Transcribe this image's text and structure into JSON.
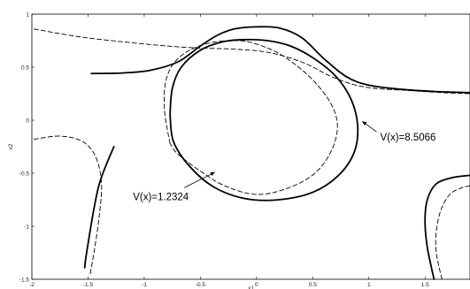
{
  "chart_data": {
    "type": "line",
    "title": "",
    "xlabel": "x1",
    "ylabel": "x2",
    "xlim": [
      -2,
      1.9
    ],
    "ylim": [
      -1.5,
      1
    ],
    "grid": false,
    "xticks": [
      {
        "value": -2,
        "label": "-2"
      },
      {
        "value": -1.5,
        "label": "-1.5"
      },
      {
        "value": -1,
        "label": "-1"
      },
      {
        "value": -0.5,
        "label": "-0.5"
      },
      {
        "value": 0,
        "label": "0"
      },
      {
        "value": 0.5,
        "label": "0.5"
      },
      {
        "value": 1,
        "label": "1"
      },
      {
        "value": 1.5,
        "label": "1.5"
      }
    ],
    "yticks": [
      {
        "value": 1,
        "label": "1"
      },
      {
        "value": 0.5,
        "label": "0.5"
      },
      {
        "value": 0,
        "label": "0"
      },
      {
        "value": -0.5,
        "label": "-0.5"
      },
      {
        "value": -1,
        "label": "-1"
      },
      {
        "value": -1.5,
        "label": "-1.5"
      }
    ],
    "series": [
      {
        "style": "solid",
        "points": [
          [
            -0.77,
            0.05
          ],
          [
            -0.75,
            0.3
          ],
          [
            -0.67,
            0.5
          ],
          [
            -0.5,
            0.66
          ],
          [
            -0.3,
            0.74
          ],
          [
            -0.1,
            0.76
          ],
          [
            0.1,
            0.75
          ],
          [
            0.3,
            0.7
          ],
          [
            0.5,
            0.59
          ],
          [
            0.7,
            0.42
          ],
          [
            0.84,
            0.2
          ],
          [
            0.9,
            -0.05
          ],
          [
            0.87,
            -0.3
          ],
          [
            0.73,
            -0.52
          ],
          [
            0.5,
            -0.68
          ],
          [
            0.2,
            -0.75
          ],
          [
            -0.1,
            -0.74
          ],
          [
            -0.38,
            -0.63
          ],
          [
            -0.6,
            -0.43
          ],
          [
            -0.74,
            -0.2
          ],
          [
            -0.77,
            0.05
          ]
        ]
      },
      {
        "style": "solid",
        "points": [
          [
            -1.47,
            0.44
          ],
          [
            -1.2,
            0.445
          ],
          [
            -0.95,
            0.47
          ],
          [
            -0.7,
            0.55
          ],
          [
            -0.5,
            0.7
          ],
          [
            -0.35,
            0.8
          ],
          [
            -0.2,
            0.86
          ],
          [
            0,
            0.88
          ],
          [
            0.2,
            0.87
          ],
          [
            0.4,
            0.78
          ],
          [
            0.6,
            0.58
          ],
          [
            0.8,
            0.41
          ],
          [
            1.0,
            0.33
          ],
          [
            1.3,
            0.29
          ],
          [
            1.6,
            0.27
          ],
          [
            1.9,
            0.26
          ]
        ]
      },
      {
        "style": "solid",
        "points": [
          [
            -1.27,
            -0.25
          ],
          [
            -1.33,
            -0.4
          ],
          [
            -1.4,
            -0.6
          ],
          [
            -1.45,
            -0.85
          ],
          [
            -1.49,
            -1.1
          ],
          [
            -1.52,
            -1.3
          ],
          [
            -1.53,
            -1.39
          ]
        ]
      },
      {
        "style": "solid",
        "points": [
          [
            1.58,
            -1.5
          ],
          [
            1.52,
            -1.2
          ],
          [
            1.5,
            -0.95
          ],
          [
            1.52,
            -0.75
          ],
          [
            1.6,
            -0.6
          ],
          [
            1.75,
            -0.54
          ],
          [
            1.9,
            -0.52
          ]
        ]
      },
      {
        "style": "dashed",
        "points": [
          [
            -0.77,
            -0.22
          ],
          [
            -0.82,
            0.1
          ],
          [
            -0.8,
            0.4
          ],
          [
            -0.68,
            0.6
          ],
          [
            -0.45,
            0.72
          ],
          [
            -0.15,
            0.75
          ],
          [
            0.1,
            0.68
          ],
          [
            0.3,
            0.56
          ],
          [
            0.5,
            0.38
          ],
          [
            0.66,
            0.16
          ],
          [
            0.72,
            -0.05
          ],
          [
            0.67,
            -0.28
          ],
          [
            0.52,
            -0.5
          ],
          [
            0.28,
            -0.64
          ],
          [
            0,
            -0.7
          ],
          [
            -0.28,
            -0.62
          ],
          [
            -0.5,
            -0.48
          ],
          [
            -0.7,
            -0.32
          ],
          [
            -0.77,
            -0.22
          ]
        ]
      },
      {
        "style": "dashed",
        "points": [
          [
            -1.98,
            0.86
          ],
          [
            -1.6,
            0.79
          ],
          [
            -1.2,
            0.74
          ],
          [
            -0.8,
            0.7
          ],
          [
            -0.5,
            0.68
          ],
          [
            -0.2,
            0.67
          ],
          [
            0.1,
            0.64
          ],
          [
            0.4,
            0.55
          ],
          [
            0.65,
            0.42
          ],
          [
            0.85,
            0.34
          ],
          [
            1.05,
            0.3
          ],
          [
            1.35,
            0.28
          ],
          [
            1.65,
            0.26
          ],
          [
            1.9,
            0.25
          ]
        ]
      },
      {
        "style": "dashed",
        "points": [
          [
            -1.98,
            -0.18
          ],
          [
            -1.75,
            -0.15
          ],
          [
            -1.55,
            -0.2
          ],
          [
            -1.43,
            -0.35
          ],
          [
            -1.38,
            -0.6
          ],
          [
            -1.4,
            -0.9
          ],
          [
            -1.44,
            -1.2
          ],
          [
            -1.48,
            -1.45
          ]
        ]
      },
      {
        "style": "dashed",
        "points": [
          [
            1.65,
            -1.5
          ],
          [
            1.6,
            -1.25
          ],
          [
            1.6,
            -1.05
          ],
          [
            1.64,
            -0.85
          ],
          [
            1.72,
            -0.7
          ],
          [
            1.82,
            -0.64
          ],
          [
            1.9,
            -0.62
          ]
        ]
      }
    ],
    "annotations": [
      {
        "text": "V(x)=8.5066",
        "text_at": [
          1.1,
          -0.16
        ],
        "arrow_to": [
          0.94,
          -0.01
        ]
      },
      {
        "text": "V(x)=1.2324",
        "text_at": [
          -1.1,
          -0.72
        ],
        "arrow_to": [
          -0.37,
          -0.49
        ]
      }
    ]
  }
}
